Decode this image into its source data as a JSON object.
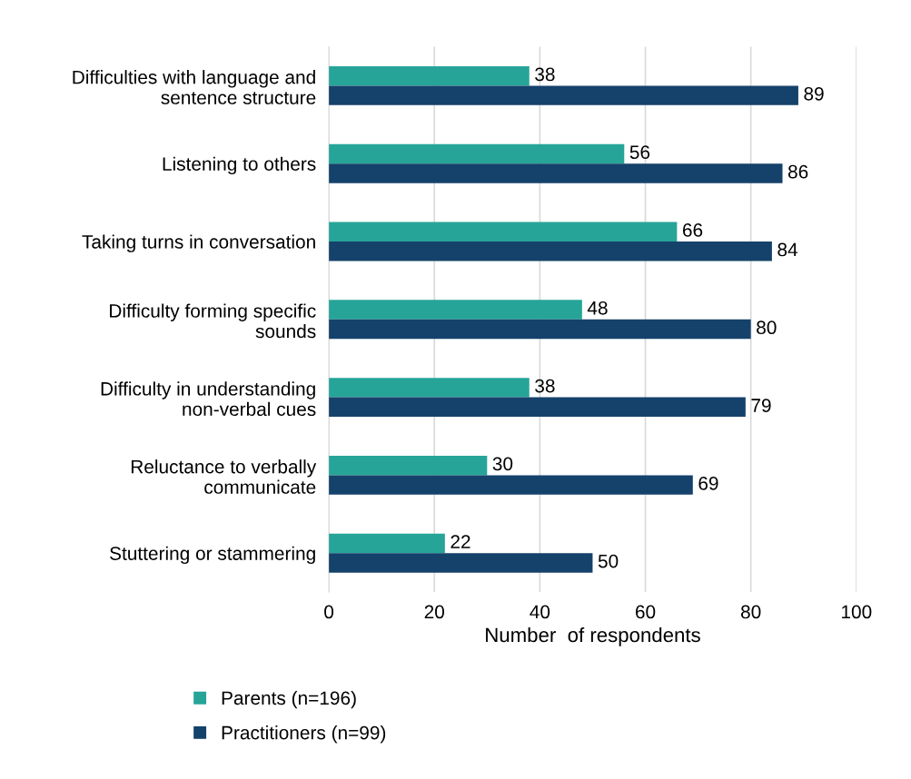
{
  "chart_data": {
    "type": "bar",
    "orientation": "horizontal",
    "xlabel": "Number  of respondents",
    "categories": [
      "Difficulties with language and\nsentence structure",
      "Listening to others",
      "Taking turns in conversation",
      "Difficulty forming specific\nsounds",
      "Difficulty in understanding\nnon-verbal cues",
      "Reluctance to verbally\ncommunicate",
      "Stuttering or stammering"
    ],
    "series": [
      {
        "name": "Parents (n=196)",
        "color": "#26a498",
        "values": [
          38,
          56,
          66,
          48,
          38,
          30,
          22
        ]
      },
      {
        "name": "Practitioners (n=99)",
        "color": "#15426b",
        "values": [
          89,
          86,
          84,
          80,
          79,
          69,
          50
        ]
      }
    ],
    "xlim": [
      0,
      100
    ],
    "xticks": [
      0,
      20,
      40,
      60,
      80,
      100
    ],
    "grid": "x",
    "legend": "bottom",
    "data_labels": true
  }
}
